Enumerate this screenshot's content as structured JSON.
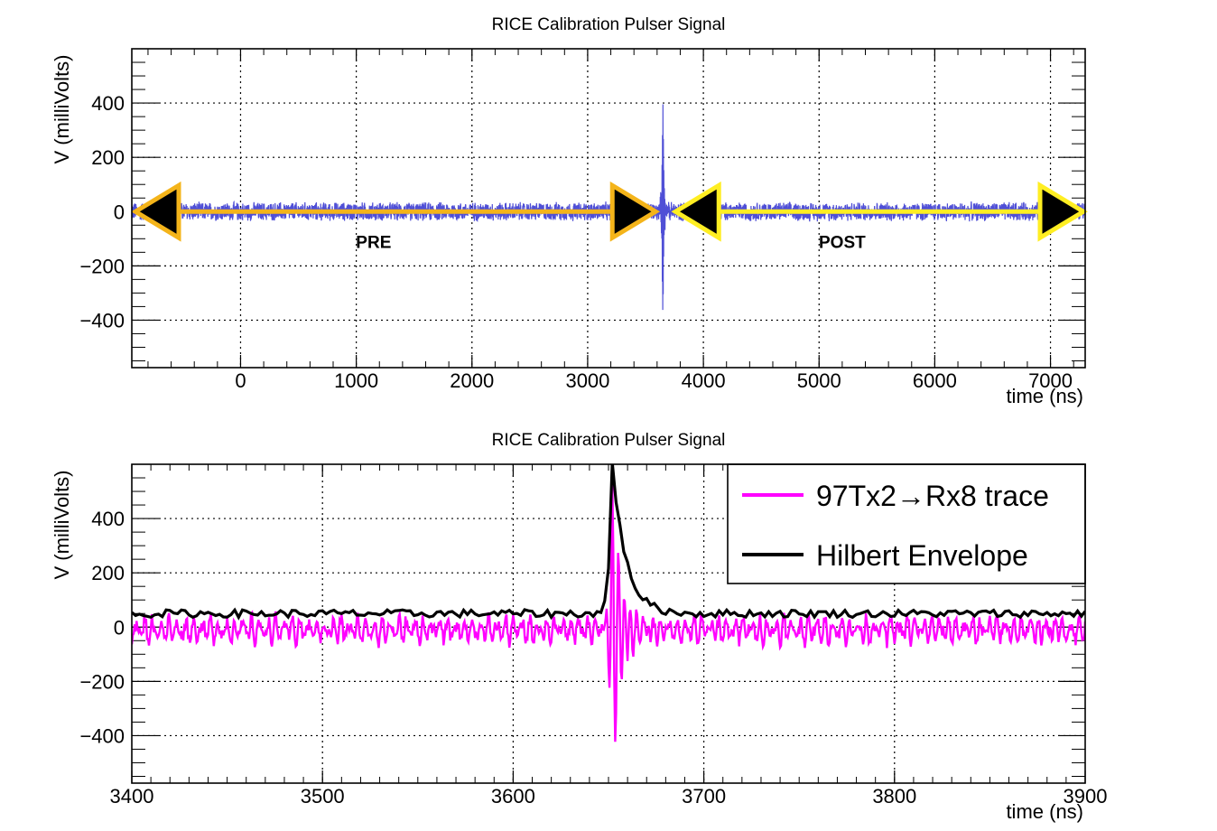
{
  "chart_data": [
    {
      "type": "line",
      "title": "RICE Calibration Pulser Signal",
      "xlabel": "time (ns)",
      "ylabel": "V (milliVolts)",
      "xlim": [
        -940,
        7300
      ],
      "ylim": [
        -575,
        600
      ],
      "xticks": [
        0,
        1000,
        2000,
        3000,
        4000,
        5000,
        6000,
        7000
      ],
      "xtick_labels": [
        "0",
        "1000",
        "2000",
        "3000",
        "4000",
        "5000",
        "6000",
        "7000"
      ],
      "yticks": [
        -400,
        -200,
        0,
        200,
        400
      ],
      "ytick_labels": [
        "−400",
        "−200",
        "0",
        "200",
        "400"
      ],
      "grid": true,
      "series": [
        {
          "color": "#4f4fd6",
          "noise_amplitude_mv": 38,
          "baseline_mv": 0,
          "pulse_time_ns": 3650,
          "pulse_peak_mv": 500,
          "pulse_trough_mv": -480
        }
      ],
      "annotations": [
        {
          "label": "PRE",
          "x": 1150,
          "y": -120,
          "arrow_from": -940,
          "arrow_to": 3650,
          "color": "#f4b41a"
        },
        {
          "label": "POST",
          "x": 5200,
          "y": -120,
          "arrow_from": 3650,
          "arrow_to": 7300,
          "color": "#ffee22"
        }
      ]
    },
    {
      "type": "line",
      "title": "RICE Calibration Pulser Signal",
      "xlabel": "time (ns)",
      "ylabel": "V (milliVolts)",
      "xlim": [
        3400,
        3900
      ],
      "ylim": [
        -575,
        600
      ],
      "xticks": [
        3400,
        3500,
        3600,
        3700,
        3800,
        3900
      ],
      "xtick_labels": [
        "3400",
        "3500",
        "3600",
        "3700",
        "3800",
        "3900"
      ],
      "yticks": [
        -400,
        -200,
        0,
        200,
        400
      ],
      "ytick_labels": [
        "−400",
        "−200",
        "0",
        "200",
        "400"
      ],
      "grid": true,
      "legend": "top-right",
      "series": [
        {
          "name": "97Tx2→Rx8 trace",
          "color": "#ff00ff"
        },
        {
          "name": "Hilbert Envelope",
          "color": "#000000"
        }
      ]
    }
  ]
}
